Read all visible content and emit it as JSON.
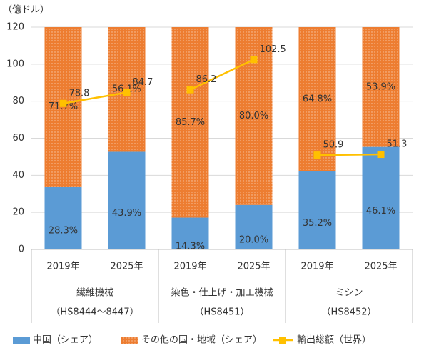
{
  "chart_data": {
    "type": "bar_line",
    "y_unit_label": "（億ドル）",
    "categories": [
      "2019年",
      "2025年",
      "2019年",
      "2025年",
      "2019年",
      "2025年"
    ],
    "groups": [
      {
        "name": "繊維機械",
        "code": "（HS8444～8447）"
      },
      {
        "name": "染色・仕上げ・加工機械",
        "code": "（HS8451）"
      },
      {
        "name": "ミシン",
        "code": "（HS8452）"
      }
    ],
    "series": [
      {
        "name": "中国（シェア）",
        "kind": "bar",
        "color": "#5b9bd5",
        "values": [
          28.3,
          43.9,
          14.3,
          20.0,
          35.2,
          46.1
        ],
        "value_labels": [
          "28.3%",
          "43.9%",
          "14.3%",
          "20.0%",
          "35.2%",
          "46.1%"
        ]
      },
      {
        "name": "その他の国・地域（シェア）",
        "kind": "bar",
        "color": "#ed7d31",
        "values": [
          71.7,
          56.1,
          85.7,
          80.0,
          64.8,
          53.9
        ],
        "value_labels": [
          "71.7%",
          "56.1%",
          "85.7%",
          "80.0%",
          "64.8%",
          "53.9%"
        ]
      },
      {
        "name": "輸出総額（世界）",
        "kind": "line",
        "color": "#ffc000",
        "values": [
          78.8,
          84.7,
          86.2,
          102.5,
          50.9,
          51.3
        ]
      }
    ],
    "ylim": [
      0,
      120
    ],
    "yticks": [
      0,
      20,
      40,
      60,
      80,
      100,
      120
    ],
    "grid": true
  }
}
